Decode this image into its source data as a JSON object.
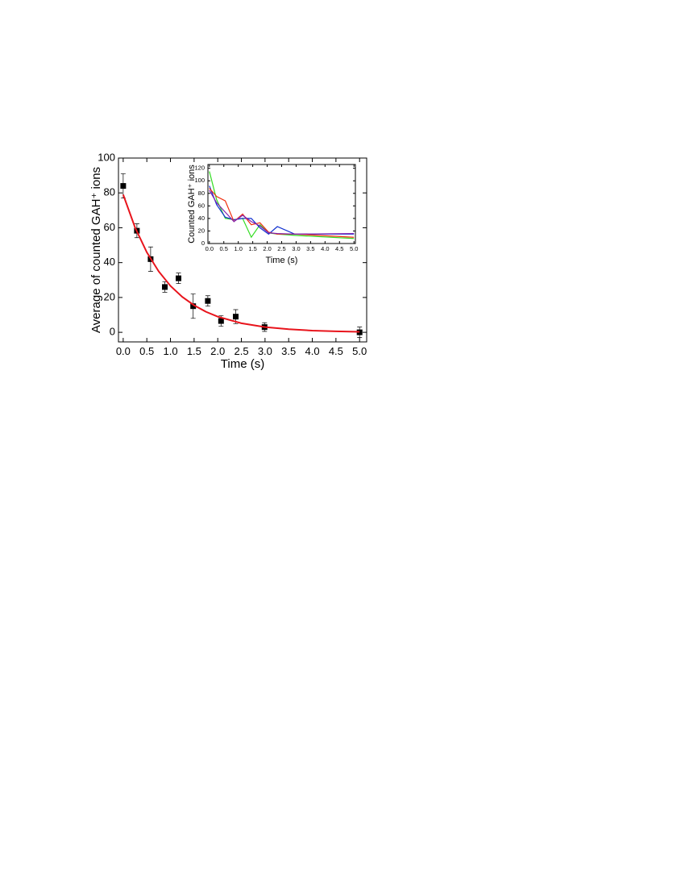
{
  "chart_data": [
    {
      "type": "scatter",
      "xlabel": "Time (s)",
      "ylabel": "Average of counted GAH⁺ ions",
      "xlim": [
        -0.1,
        5.15
      ],
      "ylim": [
        -5.5,
        100
      ],
      "xticks": [
        {
          "value": 0,
          "label": "0.0"
        },
        {
          "value": 0.5,
          "label": "0.5"
        },
        {
          "value": 1,
          "label": "1.0"
        },
        {
          "value": 1.5,
          "label": "1.5"
        },
        {
          "value": 2,
          "label": "2.0"
        },
        {
          "value": 2.5,
          "label": "2.5"
        },
        {
          "value": 3,
          "label": "3.0"
        },
        {
          "value": 3.5,
          "label": "3.5"
        },
        {
          "value": 4,
          "label": "4.0"
        },
        {
          "value": 4.5,
          "label": "4.5"
        },
        {
          "value": 5,
          "label": "5.0"
        }
      ],
      "yticks": [
        0,
        20,
        40,
        60,
        80,
        100
      ],
      "series": [
        {
          "type": "scatter",
          "color": "#000000",
          "x": [
            0,
            0.29,
            0.58,
            0.88,
            1.17,
            1.48,
            1.79,
            2.07,
            2.38,
            2.99,
            5.0
          ],
          "values": [
            84,
            58.3,
            42,
            26,
            31,
            15,
            18,
            6.5,
            9,
            3,
            0
          ],
          "errors": [
            7,
            4,
            7,
            3,
            3,
            7,
            3,
            3,
            4,
            2.5,
            3
          ]
        },
        {
          "type": "line",
          "color": "#e8141c",
          "x": [
            0,
            0.25,
            0.5,
            0.75,
            1.0,
            1.25,
            1.5,
            1.75,
            2.0,
            2.5,
            3.0,
            3.5,
            4.0,
            4.5,
            5.0
          ],
          "values": [
            79,
            60.2,
            45.9,
            35.0,
            26.6,
            20.3,
            15.5,
            11.8,
            9.0,
            5.2,
            3.0,
            1.8,
            1.0,
            0.6,
            0.3
          ]
        }
      ]
    },
    {
      "type": "line",
      "xlabel": "Time (s)",
      "ylabel": "Counted GAH⁺ ions",
      "xlim": [
        -0.05,
        5.05
      ],
      "ylim": [
        0,
        126
      ],
      "xticks": [
        {
          "value": 0,
          "label": "0.0"
        },
        {
          "value": 0.5,
          "label": "0.5"
        },
        {
          "value": 1,
          "label": "1.0"
        },
        {
          "value": 1.5,
          "label": "1.5"
        },
        {
          "value": 2,
          "label": "2.0"
        },
        {
          "value": 2.5,
          "label": "2.5"
        },
        {
          "value": 3,
          "label": "3.0"
        },
        {
          "value": 3.5,
          "label": "3.5"
        },
        {
          "value": 4,
          "label": "4.0"
        },
        {
          "value": 4.5,
          "label": "4.5"
        },
        {
          "value": 5,
          "label": "5.0"
        }
      ],
      "yticks": [
        0,
        20,
        40,
        60,
        80,
        100,
        120
      ],
      "x": [
        0,
        0.25,
        0.55,
        0.85,
        1.15,
        1.45,
        1.75,
        2.05,
        2.35,
        2.95,
        5.0
      ],
      "series": [
        {
          "color": "#33dd22",
          "values": [
            115,
            70,
            40,
            38,
            40,
            10,
            30,
            17,
            15,
            13,
            8
          ]
        },
        {
          "color": "#1030d0",
          "values": [
            92,
            62,
            42,
            38,
            40,
            40,
            25,
            15,
            27,
            15,
            15
          ]
        },
        {
          "color": "#f03010",
          "values": [
            88,
            75,
            68,
            35,
            47,
            30,
            33,
            18,
            15,
            15,
            10
          ]
        },
        {
          "color": "#8020b0",
          "values": [
            85,
            65,
            50,
            35,
            45,
            35,
            28,
            17,
            16,
            15,
            16
          ]
        }
      ]
    }
  ]
}
